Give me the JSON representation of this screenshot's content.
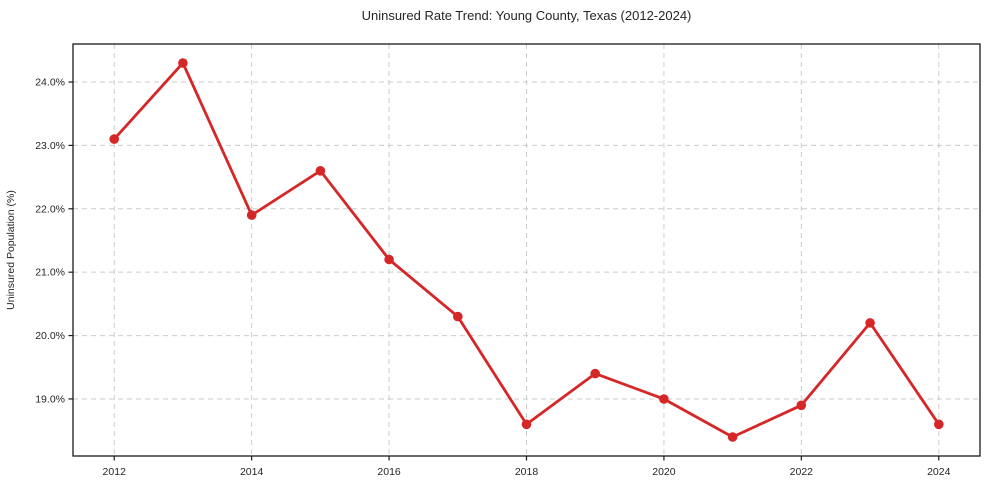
{
  "chart_data": {
    "type": "line",
    "title": "Uninsured Rate Trend: Young County, Texas (2012-2024)",
    "xlabel": "",
    "ylabel": "Uninsured Population (%)",
    "x": [
      2012,
      2013,
      2014,
      2015,
      2016,
      2017,
      2018,
      2019,
      2020,
      2021,
      2022,
      2023,
      2024
    ],
    "values": [
      23.1,
      24.3,
      21.9,
      22.6,
      21.2,
      20.3,
      18.6,
      19.4,
      19.0,
      18.4,
      18.9,
      20.2,
      18.6
    ],
    "xticks": [
      2012,
      2014,
      2016,
      2018,
      2020,
      2022,
      2024
    ],
    "xtick_labels": [
      "2012",
      "2014",
      "2016",
      "2018",
      "2020",
      "2022",
      "2024"
    ],
    "yticks": [
      19,
      20,
      21,
      22,
      23,
      24
    ],
    "ytick_labels": [
      "19.0%",
      "20.0%",
      "21.0%",
      "22.0%",
      "23.0%",
      "24.0%"
    ],
    "xlim": [
      2011.4,
      2024.6
    ],
    "ylim": [
      18.1,
      24.6
    ],
    "grid": true,
    "grid_style": "dashed",
    "legend": "none",
    "line_color": "#d62728",
    "marker": "circle",
    "grid_color": "#cccccc",
    "axis_color": "#1a1a1a",
    "background": "#ffffff"
  }
}
